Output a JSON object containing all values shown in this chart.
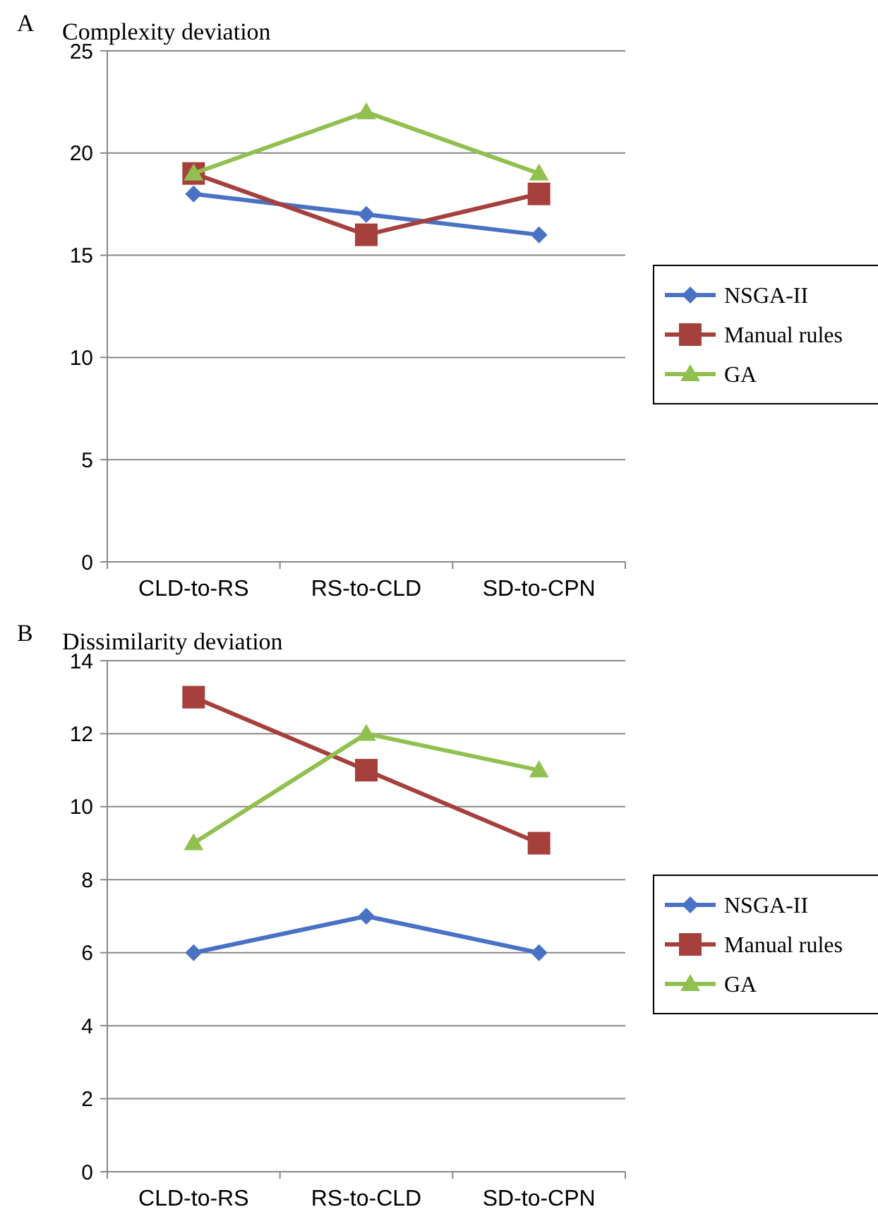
{
  "chart_data": [
    {
      "type": "line",
      "title": "Complexity deviation",
      "annotations": [
        "A"
      ],
      "categories": [
        "CLD-to-RS",
        "RS-to-CLD",
        "SD-to-CPN"
      ],
      "ylim": [
        0,
        25
      ],
      "yticks": [
        0,
        5,
        10,
        15,
        20,
        25
      ],
      "grid": "y",
      "legend": "right",
      "series": [
        {
          "name": "NSGA-II",
          "color": "#4a72c4",
          "marker": "diamond",
          "values": [
            18,
            17,
            16
          ]
        },
        {
          "name": "Manual rules",
          "color": "#a5403d",
          "marker": "square",
          "values": [
            19,
            16,
            18
          ]
        },
        {
          "name": "GA",
          "color": "#92c050",
          "marker": "triangle",
          "values": [
            19,
            22,
            19
          ]
        }
      ]
    },
    {
      "type": "line",
      "title": "Dissimilarity deviation",
      "annotations": [
        "B"
      ],
      "categories": [
        "CLD-to-RS",
        "RS-to-CLD",
        "SD-to-CPN"
      ],
      "ylim": [
        0,
        14
      ],
      "yticks": [
        0,
        2,
        4,
        6,
        8,
        10,
        12,
        14
      ],
      "grid": "y",
      "legend": "right",
      "series": [
        {
          "name": "NSGA-II",
          "color": "#4a72c4",
          "marker": "diamond",
          "values": [
            6,
            7,
            6
          ]
        },
        {
          "name": "Manual rules",
          "color": "#a5403d",
          "marker": "square",
          "values": [
            13,
            11,
            9
          ]
        },
        {
          "name": "GA",
          "color": "#92c050",
          "marker": "triangle",
          "values": [
            9,
            12,
            11
          ]
        }
      ]
    }
  ]
}
